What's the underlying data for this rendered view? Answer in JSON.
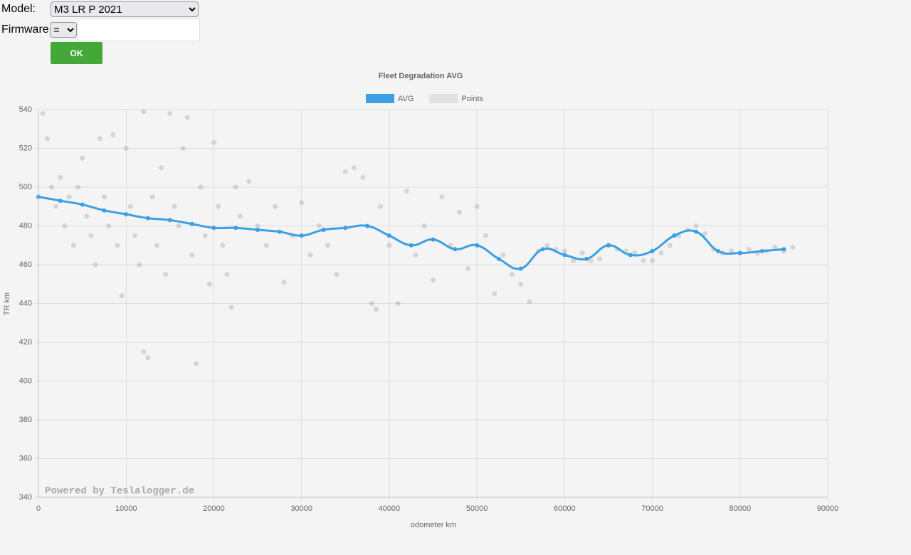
{
  "form": {
    "model_label": "Model:",
    "model_value": "M3 LR P 2021",
    "firmware_label": "Firmware:",
    "firmware_op": "=",
    "button": "OK"
  },
  "chart_data": {
    "type": "line",
    "title": "Fleet Degradation AVG",
    "x_label": "odometer km",
    "y_label": "TR km",
    "watermark": "Powered by Teslalogger.de",
    "xlim": [
      0,
      90000
    ],
    "xticks": [
      0,
      10000,
      20000,
      30000,
      40000,
      50000,
      60000,
      70000,
      80000,
      90000
    ],
    "ylim": [
      340,
      540
    ],
    "yticks": [
      340,
      360,
      380,
      400,
      420,
      440,
      460,
      480,
      500,
      520,
      540
    ],
    "grid": true,
    "series": [
      {
        "name": "AVG",
        "type": "line",
        "color": "#3d9fe3",
        "x": [
          0,
          2500,
          5000,
          7500,
          10000,
          12500,
          15000,
          17500,
          20000,
          22500,
          25000,
          27500,
          30000,
          32500,
          35000,
          37500,
          40000,
          42500,
          45000,
          47500,
          50000,
          52500,
          55000,
          57500,
          60000,
          62500,
          65000,
          67500,
          70000,
          72500,
          75000,
          77500,
          80000,
          82500,
          85000
        ],
        "values": [
          495,
          493,
          491,
          488,
          486,
          484,
          483,
          481,
          479,
          479,
          478,
          477,
          475,
          478,
          479,
          480,
          475,
          470,
          473,
          468,
          470,
          463,
          458,
          468,
          465,
          463,
          470,
          465,
          467,
          475,
          477,
          467,
          466,
          467,
          468
        ]
      },
      {
        "name": "Points",
        "type": "scatter",
        "color": "rgba(120,120,120,0.25)",
        "x": [
          500,
          1000,
          1500,
          2000,
          2500,
          3000,
          3500,
          4000,
          4500,
          5000,
          5500,
          6000,
          6500,
          7000,
          7500,
          8000,
          8500,
          9000,
          9500,
          10000,
          10500,
          11000,
          11500,
          12000,
          12000,
          12500,
          13000,
          13500,
          14000,
          14500,
          15000,
          15500,
          16000,
          16500,
          17000,
          17500,
          18000,
          18500,
          19000,
          19500,
          20000,
          20500,
          21000,
          21500,
          22000,
          22500,
          23000,
          24000,
          25000,
          26000,
          27000,
          28000,
          29000,
          30000,
          31000,
          32000,
          33000,
          34000,
          35000,
          36000,
          37000,
          38000,
          38500,
          39000,
          40000,
          41000,
          42000,
          43000,
          44000,
          45000,
          46000,
          47000,
          48000,
          49000,
          50000,
          51000,
          52000,
          53000,
          54000,
          55000,
          56000,
          57000,
          58000,
          59000,
          60000,
          61000,
          62000,
          63000,
          64000,
          65000,
          66000,
          67000,
          68000,
          69000,
          70000,
          71000,
          72000,
          73000,
          74000,
          75000,
          76000,
          77000,
          78000,
          79000,
          80000,
          81000,
          82000,
          83000,
          84000,
          85000,
          86000
        ],
        "values": [
          538,
          525,
          500,
          490,
          505,
          480,
          495,
          470,
          500,
          515,
          485,
          475,
          460,
          525,
          495,
          480,
          527,
          470,
          444,
          520,
          490,
          475,
          460,
          539,
          415,
          412,
          495,
          470,
          510,
          455,
          538,
          490,
          480,
          520,
          536,
          465,
          409,
          500,
          475,
          450,
          523,
          490,
          470,
          455,
          438,
          500,
          485,
          503,
          480,
          470,
          490,
          451,
          475,
          492,
          465,
          480,
          470,
          455,
          508,
          510,
          505,
          440,
          437,
          490,
          470,
          440,
          498,
          465,
          480,
          452,
          495,
          470,
          487,
          458,
          490,
          475,
          445,
          465,
          455,
          450,
          441,
          467,
          470,
          468,
          467,
          462,
          466,
          462,
          463,
          470,
          468,
          467,
          466,
          462,
          462,
          466,
          470,
          475,
          478,
          480,
          476,
          468,
          466,
          467,
          466,
          468,
          466,
          467,
          469,
          467,
          469
        ]
      }
    ]
  }
}
